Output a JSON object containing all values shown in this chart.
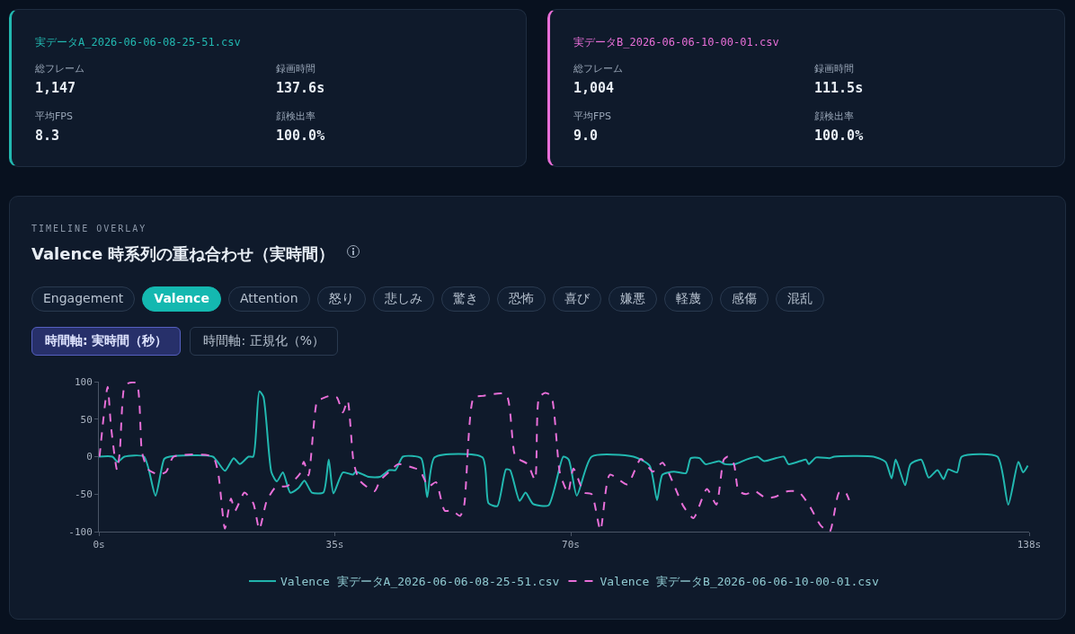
{
  "chart_data": [
    {
      "type": "other",
      "title": "実データA_2026-06-06-08-25-51.csv",
      "color": "#22b8b0",
      "annotations": [
        "総フレーム",
        "1,147",
        "録画時間",
        "137.6s",
        "平均FPS",
        "8.3",
        "顔検出率",
        "100.0%"
      ]
    },
    {
      "type": "other",
      "title": "実データB_2026-06-06-10-00-01.csv",
      "color": "#e86fd8",
      "annotations": [
        "総フレーム",
        "1,004",
        "録画時間",
        "111.5s",
        "平均FPS",
        "9.0",
        "顔検出率",
        "100.0%"
      ]
    },
    {
      "type": "line",
      "subtitle": "TIMELINE OVERLAY",
      "title": "Valence 時系列の重ね合わせ（実時間）",
      "annotations": [
        "Engagement",
        "Valence",
        "Attention",
        "怒り",
        "悲しみ",
        "驚き",
        "恐怖",
        "喜び",
        "嫌悪",
        "軽蔑",
        "感傷",
        "混乱",
        "時間軸: 実時間（秒）",
        "時間軸: 正規化（%）"
      ],
      "xlim": [
        0,
        138
      ],
      "xticks": [
        {
          "value": 0,
          "label": "0s"
        },
        {
          "value": 35,
          "label": "35s"
        },
        {
          "value": 70,
          "label": "70s"
        },
        {
          "value": 138,
          "label": "138s"
        }
      ],
      "ylim": [
        -100,
        100
      ],
      "yticks": [
        -100,
        -50,
        0,
        50,
        100
      ],
      "grid": false,
      "legend": "bottom",
      "series": [
        {
          "name": "Valence 実データA_2026-06-06-08-25-51.csv",
          "color": "#22b8b0",
          "line_style": "solid",
          "x": [
            0,
            2,
            2.8,
            3.8,
            6.7,
            8.4,
            9.7,
            10.5,
            16.9,
            18.7,
            20,
            20.9,
            22.2,
            22.9,
            23.8,
            24.4,
            25.6,
            26.4,
            27.3,
            28.4,
            29.6,
            30.5,
            31.6,
            33.3,
            34.1,
            34.8,
            36.2,
            37.7,
            38.1,
            40,
            41.7,
            43.1,
            44,
            45.1,
            47.8,
            48.7,
            49.8,
            56.9,
            57.8,
            59.1,
            60.4,
            61,
            62.4,
            63.3,
            64.4,
            66.7,
            68.9,
            69.7,
            70.9,
            73.1,
            79.3,
            81.7,
            82.8,
            83.6,
            85.3,
            87.1,
            87.8,
            89.1,
            90,
            92,
            92.9,
            94.4,
            96,
            97.7,
            98.7,
            101.6,
            102.3,
            104,
            104.9,
            105.3,
            106.4,
            108.4,
            109.1,
            114.9,
            116.7,
            117.6,
            118.2,
            119.6,
            120.4,
            122,
            123.1,
            124.4,
            125.3,
            126,
            127.3,
            128,
            133.3,
            134.9,
            136.4,
            137.1,
            137.8
          ],
          "values": [
            0,
            0,
            -7,
            0,
            0,
            -52,
            -3,
            0,
            0,
            -19,
            -2,
            -10,
            0,
            0,
            87,
            80,
            -21,
            -33,
            -21,
            -48,
            -42,
            -32,
            -48,
            -48,
            -4,
            -49,
            -21,
            -24,
            -20,
            -27,
            -27,
            -18,
            -18,
            0,
            -2,
            -54,
            -1,
            -1,
            -62,
            -66,
            -17,
            -18,
            -59,
            -48,
            -63,
            -65,
            0,
            -4,
            -52,
            0,
            0,
            -12,
            -58,
            -24,
            -20,
            -22,
            -2,
            -2,
            -10,
            -6,
            -10,
            -10,
            -4,
            0,
            -6,
            0,
            -10,
            -6,
            -4,
            -10,
            -1,
            -2,
            0,
            0,
            -7,
            -29,
            -4,
            -38,
            -10,
            -4,
            -28,
            -18,
            -30,
            -17,
            -21,
            0,
            0,
            -64,
            -7,
            -21,
            -12
          ]
        },
        {
          "name": "Valence 実データB_2026-06-06-10-00-01.csv",
          "color": "#e86fd8",
          "line_style": "dashed",
          "x": [
            0.1,
            1.3,
            1.8,
            2.7,
            3.1,
            3.8,
            4.4,
            5.6,
            6.4,
            7.3,
            8.9,
            10,
            11.1,
            16.9,
            17.7,
            18.7,
            19.6,
            20.2,
            21.6,
            22.9,
            23.8,
            24.9,
            26.2,
            28,
            29.8,
            30.4,
            31.1,
            32.4,
            33,
            34.2,
            35.3,
            36.2,
            36.9,
            37.8,
            38.7,
            40.9,
            41.7,
            43.1,
            44.4,
            46.7,
            47.6,
            48.9,
            50,
            51.3,
            52.4,
            53.6,
            54.2,
            55.6,
            56.9,
            60.4,
            61.8,
            63.6,
            64.7,
            65.3,
            66.2,
            67.1,
            68.4,
            69.6,
            70.4,
            72,
            73.1,
            74.4,
            75.8,
            78.4,
            80.4,
            82.2,
            83.6,
            86.7,
            88.2,
            90.2,
            91.6,
            92.7,
            93.3,
            94.2,
            94.9,
            96,
            97.3,
            98.9,
            100.2,
            102.2,
            103.8,
            105.3,
            107.1,
            108.4,
            109.8,
            110.7,
            111.3
          ],
          "values": [
            0,
            93,
            40,
            -18,
            6,
            94,
            98,
            98,
            6,
            -17,
            -24,
            -20,
            0,
            0,
            -22,
            -96,
            -56,
            -72,
            -48,
            -62,
            -97,
            -59,
            -41,
            -39,
            -23,
            -7,
            -25,
            75,
            77,
            81,
            79,
            59,
            75,
            -8,
            -32,
            -46,
            -32,
            -20,
            -10,
            -15,
            -18,
            -40,
            -34,
            -72,
            -72,
            -79,
            -64,
            79,
            81,
            83,
            0,
            -10,
            -31,
            79,
            85,
            81,
            -22,
            -48,
            -16,
            -48,
            -50,
            -98,
            -24,
            -37,
            -3,
            -20,
            -8,
            -66,
            -82,
            -43,
            -64,
            -4,
            0,
            -10,
            -46,
            -50,
            -46,
            -55,
            -54,
            -46,
            -47,
            -64,
            -92,
            -100,
            -48,
            -47,
            -58
          ]
        }
      ]
    }
  ]
}
